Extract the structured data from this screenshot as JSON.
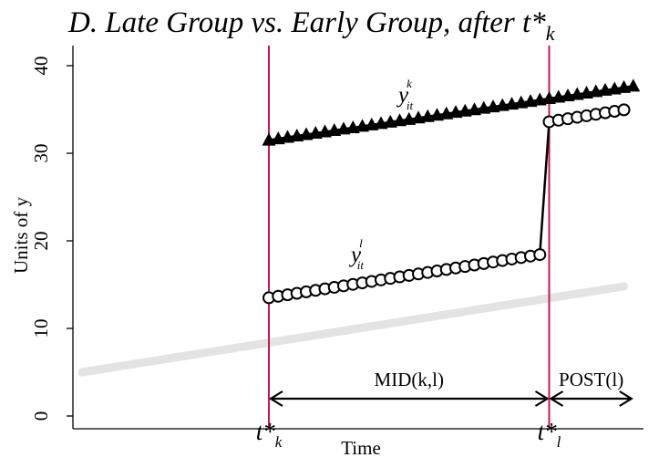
{
  "chart_data": {
    "type": "line",
    "title": "D. Late Group vs. Early Group, after t*",
    "title_subscript": "k",
    "ylabel": "Units of y",
    "xlabel": "Time",
    "ylim": [
      0,
      40
    ],
    "yticks": [
      0,
      10,
      20,
      30,
      40
    ],
    "xlim": [
      -20,
      40
    ],
    "event_lines": [
      {
        "x": 0,
        "label": "t*",
        "sub": "k"
      },
      {
        "x": 30,
        "label": "t*",
        "sub": "l"
      }
    ],
    "series": [
      {
        "name": "y",
        "sup": "k",
        "sub": "it",
        "marker": "triangle",
        "x": [
          0,
          1,
          2,
          3,
          4,
          5,
          6,
          7,
          8,
          9,
          10,
          11,
          12,
          13,
          14,
          15,
          16,
          17,
          18,
          19,
          20,
          21,
          22,
          23,
          24,
          25,
          26,
          27,
          28,
          29,
          30,
          31,
          32,
          33,
          34,
          35,
          36,
          37,
          38,
          39
        ],
        "values": [
          31.5,
          31.66,
          31.82,
          31.98,
          32.13,
          32.29,
          32.45,
          32.61,
          32.77,
          32.92,
          33.08,
          33.24,
          33.4,
          33.56,
          33.72,
          33.87,
          34.03,
          34.19,
          34.35,
          34.51,
          34.67,
          34.82,
          34.98,
          35.14,
          35.3,
          35.46,
          35.61,
          35.77,
          35.93,
          36.09,
          36.25,
          36.41,
          36.56,
          36.72,
          36.88,
          37.04,
          37.2,
          37.35,
          37.51,
          37.67
        ]
      },
      {
        "name": "y",
        "sup": "l",
        "sub": "it",
        "marker": "circle",
        "x": [
          0,
          1,
          2,
          3,
          4,
          5,
          6,
          7,
          8,
          9,
          10,
          11,
          12,
          13,
          14,
          15,
          16,
          17,
          18,
          19,
          20,
          21,
          22,
          23,
          24,
          25,
          26,
          27,
          28,
          29,
          30,
          31,
          32,
          33,
          34,
          35,
          36,
          37,
          38
        ],
        "values": [
          13.5,
          13.67,
          13.84,
          14.01,
          14.18,
          14.35,
          14.52,
          14.69,
          14.86,
          15.03,
          15.2,
          15.37,
          15.54,
          15.71,
          15.88,
          16.05,
          16.22,
          16.39,
          16.56,
          16.73,
          16.9,
          17.07,
          17.24,
          17.41,
          17.58,
          17.75,
          17.92,
          18.09,
          18.26,
          18.43,
          33.6,
          33.77,
          33.94,
          34.11,
          34.28,
          34.45,
          34.62,
          34.79,
          34.96
        ]
      },
      {
        "name": "",
        "marker": "none",
        "style": "background-trend",
        "x": [
          -20,
          38
        ],
        "values": [
          5.0,
          14.8
        ]
      }
    ],
    "annotations": [
      {
        "label": "MID(k,l)",
        "from": 0,
        "to": 30
      },
      {
        "label": "POST(l)",
        "from": 30,
        "to": 39
      }
    ],
    "colors": {
      "event_line": "#c8174d",
      "series": "#000000",
      "trend": "#e3e3e3"
    }
  }
}
